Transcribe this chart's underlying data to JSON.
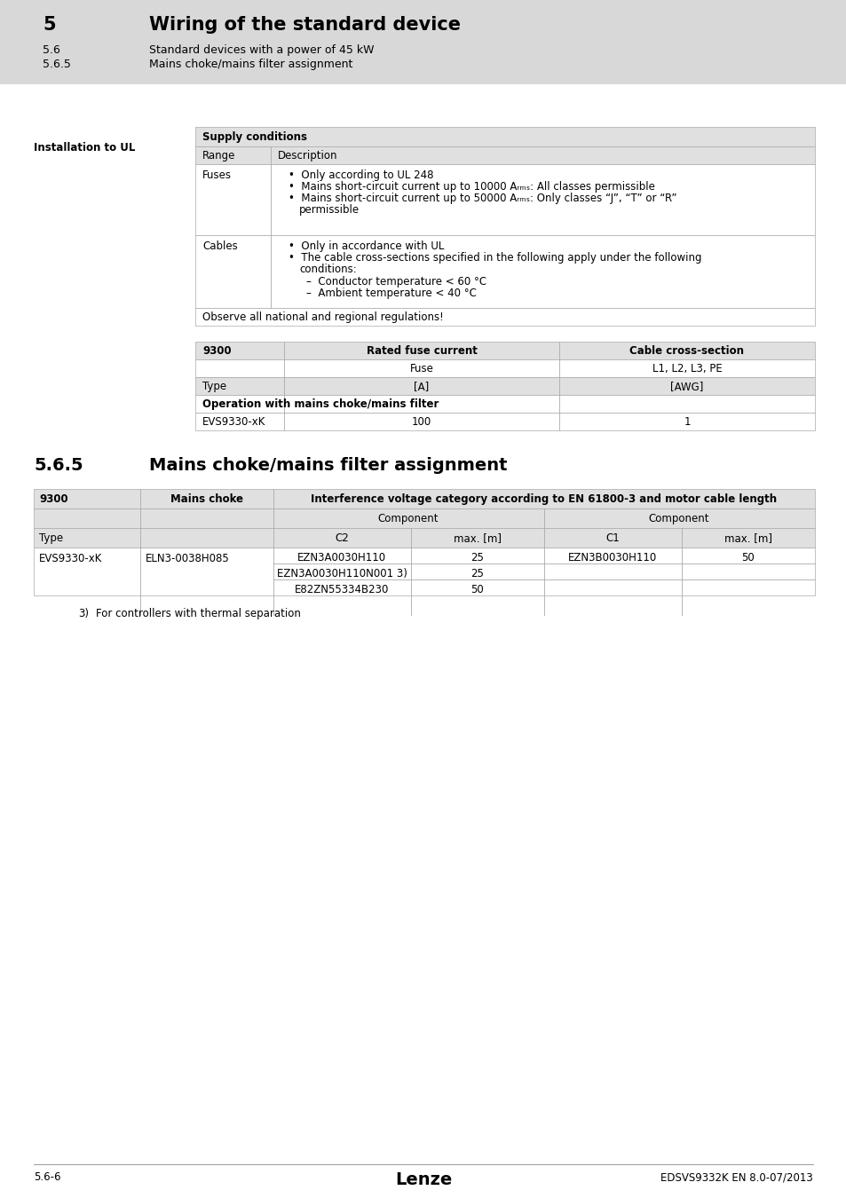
{
  "page_bg": "#e8e8e8",
  "content_bg": "#ffffff",
  "header_bg": "#d8d8d8",
  "light_gray": "#e0e0e0",
  "table_border": "#aaaaaa",
  "header_section": "5",
  "header_title": "Wiring of the standard device",
  "header_sub1_num": "5.6",
  "header_sub1_text": "Standard devices with a power of 45 kW",
  "header_sub2_num": "5.6.5",
  "header_sub2_text": "Mains choke/mains filter assignment",
  "side_label": "Installation to UL",
  "supply_title": "Supply conditions",
  "range_col": "Range",
  "desc_col": "Description",
  "fuses_label": "Fuses",
  "cables_label": "Cables",
  "observe_text": "Observe all national and regional regulations!",
  "table1_col1": "9300",
  "table1_col2": "Rated fuse current",
  "table1_col3": "Cable cross-section",
  "table1_sub2": "Fuse",
  "table1_sub3": "L1, L2, L3, PE",
  "table1_type": "Type",
  "table1_unit2": "[A]",
  "table1_unit3": "[AWG]",
  "table1_bold_row": "Operation with mains choke/mains filter",
  "table1_d1": "EVS9330-xK",
  "table1_d2": "100",
  "table1_d3": "1",
  "section_num": "5.6.5",
  "section_title": "Mains choke/mains filter assignment",
  "t2_h1": "9300",
  "t2_h2": "Mains choke",
  "t2_h3": "Interference voltage category according to EN 61800-3 and motor cable length",
  "t2_comp_c2": "Component",
  "t2_comp_c1": "Component",
  "t2_type": "Type",
  "t2_c2": "C2",
  "t2_c2_max": "max. [m]",
  "t2_c1": "C1",
  "t2_c1_max": "max. [m]",
  "t2_r1_col1": "EVS9330-xK",
  "t2_r1_col2": "ELN3-0038H085",
  "t2_r1_c2a": "EZN3A0030H110",
  "t2_r1_c2a_max": "25",
  "t2_r1_c1a": "EZN3B0030H110",
  "t2_r1_c1a_max": "50",
  "t2_r2_c2a": "EZN3A0030H110N001",
  "t2_r2_sup": "3)",
  "t2_r2_c2a_max": "25",
  "t2_r3_c2a": "E82ZN55334B230",
  "t2_r3_c2a_max": "50",
  "footnote_num": "3)",
  "footnote_text": "For controllers with thermal separation",
  "footer_left": "5.6-6",
  "footer_center": "Lenze",
  "footer_right": "EDSVS9332K EN 8.0-07/2013"
}
